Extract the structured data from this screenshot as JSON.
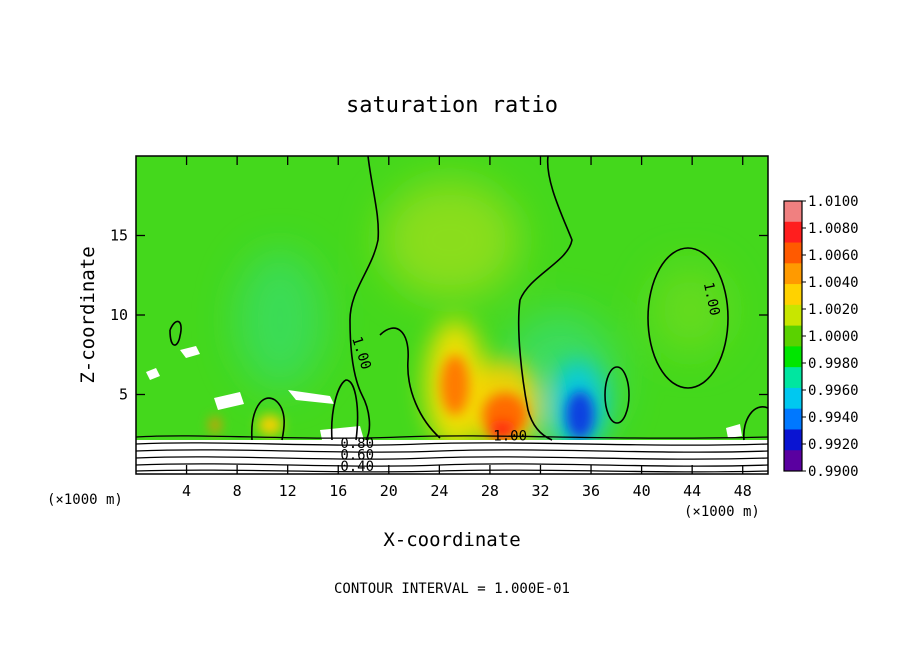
{
  "chart_data": {
    "type": "heatmap",
    "title": "saturation ratio",
    "xlabel": "X-coordinate",
    "ylabel": "Z-coordinate",
    "x_unit_left": "(×1000 m)",
    "x_unit_right": "(×1000 m)",
    "footer": "CONTOUR INTERVAL = 1.000E-01",
    "xlim": [
      0,
      50
    ],
    "ylim": [
      0,
      20
    ],
    "x_ticks": [
      4,
      8,
      12,
      16,
      20,
      24,
      28,
      32,
      36,
      40,
      44,
      48
    ],
    "y_ticks": [
      5,
      10,
      15
    ],
    "colorbar": {
      "min": 0.99,
      "max": 1.01,
      "levels": [
        "1.0100",
        "1.0080",
        "1.0060",
        "1.0040",
        "1.0020",
        "1.0000",
        "0.9980",
        "0.9960",
        "0.9940",
        "0.9920",
        "0.9900"
      ],
      "colors": [
        "#f08080",
        "#ff1e1e",
        "#ff5a00",
        "#ff9a00",
        "#ffd200",
        "#c8e600",
        "#5ad200",
        "#00e600",
        "#00e6a0",
        "#00c8f0",
        "#0078ff",
        "#0a14d2",
        "#5a00a0"
      ]
    },
    "contour_labels": [
      {
        "text": "1.00",
        "x": 17.8,
        "z": 7.6,
        "angle": 72
      },
      {
        "text": "1.00",
        "x": 45.5,
        "z": 11.0,
        "angle": 78
      },
      {
        "text": "1.00",
        "x": 29.6,
        "z": 2.35,
        "angle": 0
      },
      {
        "text": "0.80",
        "x": 17.5,
        "z": 1.9,
        "angle": 0
      },
      {
        "text": "0.60",
        "x": 17.5,
        "z": 1.15,
        "angle": 0
      },
      {
        "text": "0.40",
        "x": 17.5,
        "z": 0.45,
        "angle": 0
      }
    ]
  }
}
